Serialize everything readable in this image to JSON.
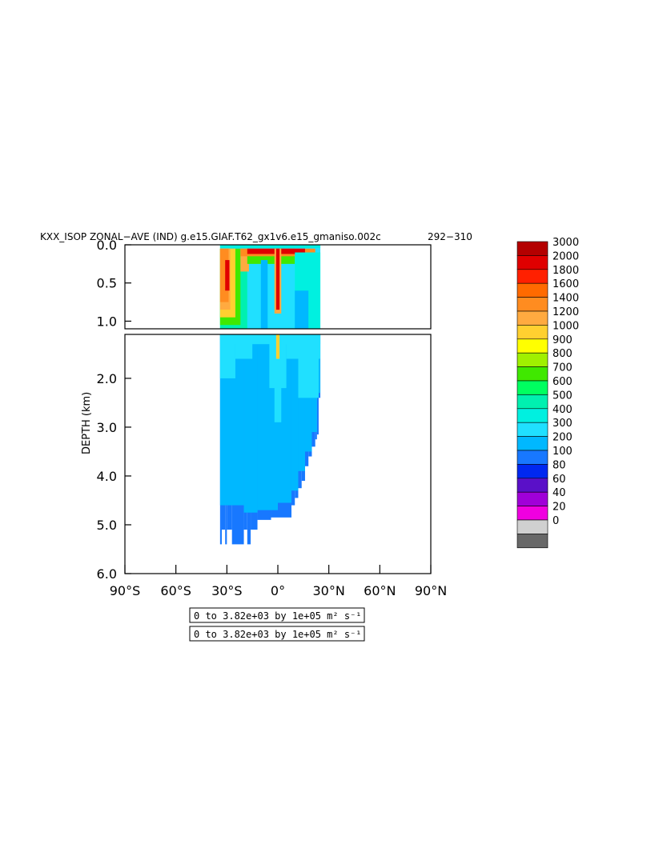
{
  "chart_data": {
    "type": "heatmap",
    "title": "KXX_ISOP ZONAL−AVE (IND) g.e15.GIAF.T62_gx1v6.e15_gmaniso.002c",
    "period": "292−310",
    "ylabel": "DEPTH (km)",
    "x_ticks": [
      "90°S",
      "60°S",
      "30°S",
      "0°",
      "30°N",
      "60°N",
      "90°N"
    ],
    "x_range": [
      -90,
      90
    ],
    "upper_panel": {
      "ylim": [
        0.0,
        1.1
      ],
      "y_ticks": [
        "0.0",
        "0.5",
        "1.0"
      ],
      "y_values": [
        0.0,
        0.5,
        1.0
      ]
    },
    "lower_panel": {
      "ylim": [
        1.1,
        6.0
      ],
      "y_ticks": [
        "2.0",
        "3.0",
        "4.0",
        "5.0",
        "6.0"
      ],
      "y_values": [
        2.0,
        3.0,
        4.0,
        5.0,
        6.0
      ]
    },
    "colorbar": {
      "levels": [
        "3000",
        "2000",
        "1800",
        "1600",
        "1400",
        "1200",
        "1000",
        "900",
        "800",
        "700",
        "600",
        "500",
        "400",
        "300",
        "200",
        "100",
        "80",
        "60",
        "40",
        "20",
        "0"
      ],
      "colors": [
        "#b40000",
        "#e00000",
        "#ff2000",
        "#ff6a00",
        "#ff8c20",
        "#ffaa40",
        "#ffd030",
        "#ffff00",
        "#a0f000",
        "#40e800",
        "#00ff60",
        "#00f0b0",
        "#00f0e0",
        "#20e0ff",
        "#00b8ff",
        "#1878ff",
        "#0028f0",
        "#5a10c8",
        "#a000d8",
        "#f000e0",
        "#d0d0d0",
        "#686868"
      ]
    },
    "legend": [
      "0 to 3.82e+03 by 1e+05 m² s⁻¹",
      "0 to 3.82e+03 by 1e+05 m² s⁻¹"
    ]
  }
}
